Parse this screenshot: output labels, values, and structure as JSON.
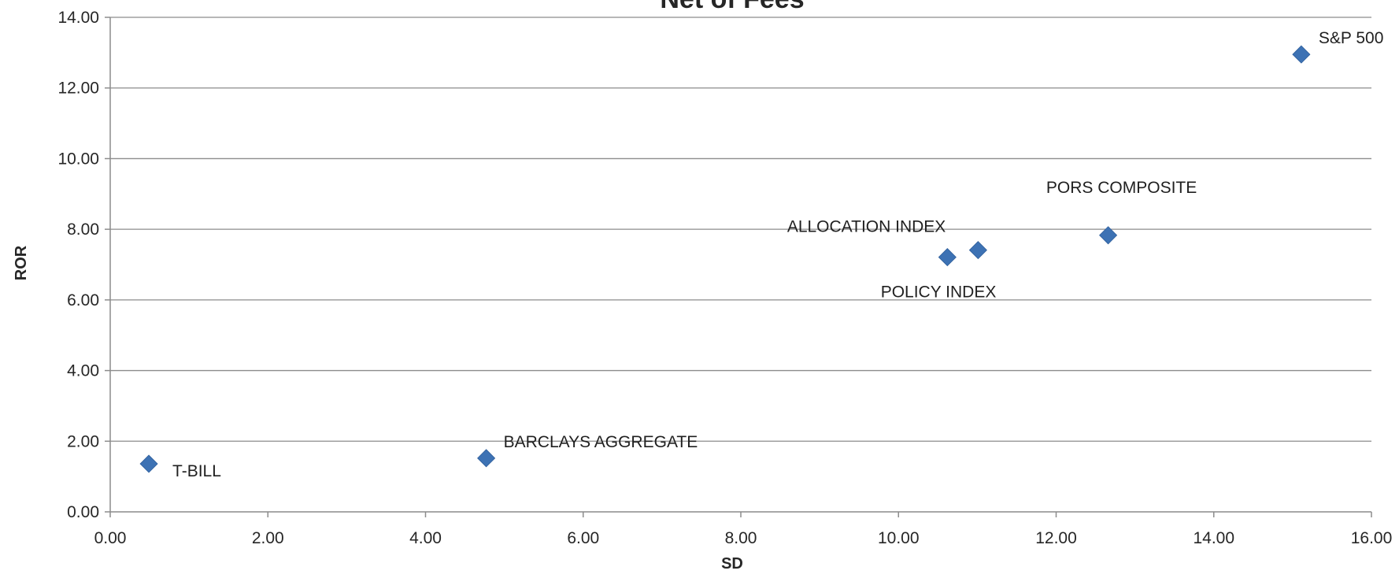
{
  "chart_data": {
    "type": "scatter",
    "title": "Net of Fees",
    "xlabel": "SD",
    "ylabel": "ROR",
    "xlim": [
      0,
      16
    ],
    "ylim": [
      0,
      14
    ],
    "xticks": [
      0,
      2,
      4,
      6,
      8,
      10,
      12,
      14,
      16
    ],
    "yticks": [
      0,
      2,
      4,
      6,
      8,
      10,
      12,
      14
    ],
    "tick_format_decimals": 2,
    "grid": "horizontal",
    "marker": "diamond",
    "marker_color": "#3d72b4",
    "legend": "none",
    "points": [
      {
        "label": "T-BILL",
        "x": 0.49,
        "y": 1.36,
        "label_position": "right-below"
      },
      {
        "label": "BARCLAYS AGGREGATE",
        "x": 4.77,
        "y": 1.52,
        "label_position": "right-above"
      },
      {
        "label": "ALLOCATION INDEX",
        "x": 10.62,
        "y": 7.21,
        "label_position": "left-above"
      },
      {
        "label": "POLICY INDEX",
        "x": 11.01,
        "y": 7.41,
        "label_position": "left-below"
      },
      {
        "label": "PORS COMPOSITE",
        "x": 12.66,
        "y": 7.83,
        "label_position": "center-above"
      },
      {
        "label": "S&P 500",
        "x": 15.11,
        "y": 12.95,
        "label_position": "right-above"
      }
    ]
  }
}
